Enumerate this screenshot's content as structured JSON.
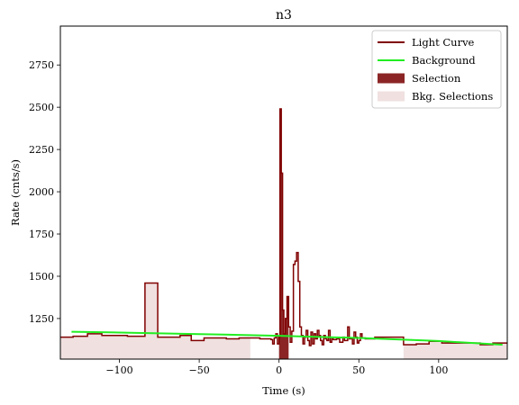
{
  "chart_data": {
    "type": "line",
    "title": "n3",
    "xlabel": "Time (s)",
    "ylabel": "Rate (cnts/s)",
    "xlim": [
      -137,
      143
    ],
    "ylim": [
      1010,
      2980
    ],
    "x_ticks": [
      -100,
      -50,
      0,
      50,
      100
    ],
    "x_tick_labels": [
      "−100",
      "−50",
      "0",
      "50",
      "100"
    ],
    "y_ticks": [
      1250,
      1500,
      1750,
      2000,
      2250,
      2500,
      2750
    ],
    "y_tick_labels": [
      "1250",
      "1500",
      "1750",
      "2000",
      "2250",
      "2500",
      "2750"
    ],
    "grid": false,
    "legend_position": "top-right",
    "legend": [
      {
        "label": "Light Curve",
        "kind": "line",
        "color": "#800000"
      },
      {
        "label": "Background",
        "kind": "line",
        "color": "#22ee22"
      },
      {
        "label": "Selection",
        "kind": "patch",
        "color": "#8b2525"
      },
      {
        "label": "Bkg. Selections",
        "kind": "patch",
        "color": "#f0e0e0"
      }
    ],
    "light_curve": {
      "color": "#800000",
      "steps": [
        [
          -137,
          1140
        ],
        [
          -130,
          1140
        ],
        [
          -129,
          1145
        ],
        [
          -121,
          1145
        ],
        [
          -120,
          1160
        ],
        [
          -112,
          1160
        ],
        [
          -111,
          1150
        ],
        [
          -95,
          1145
        ],
        [
          -85,
          1145
        ],
        [
          -84,
          1460
        ],
        [
          -77,
          1460
        ],
        [
          -76,
          1140
        ],
        [
          -62,
          1150
        ],
        [
          -55,
          1120
        ],
        [
          -47,
          1135
        ],
        [
          -33,
          1130
        ],
        [
          -25,
          1135
        ],
        [
          -12,
          1130
        ],
        [
          -5,
          1125
        ],
        [
          -4,
          1100
        ],
        [
          -3,
          1135
        ],
        [
          -2,
          1160
        ],
        [
          -1,
          1100
        ],
        [
          0,
          1140
        ],
        [
          0.6,
          2490
        ],
        [
          1.4,
          2110
        ],
        [
          2.2,
          1300
        ],
        [
          3,
          1160
        ],
        [
          4,
          1250
        ],
        [
          5,
          1380
        ],
        [
          6,
          1200
        ],
        [
          7,
          1110
        ],
        [
          8,
          1175
        ],
        [
          9,
          1570
        ],
        [
          10,
          1590
        ],
        [
          11,
          1640
        ],
        [
          12,
          1470
        ],
        [
          13,
          1200
        ],
        [
          14,
          1150
        ],
        [
          15,
          1100
        ],
        [
          16,
          1140
        ],
        [
          17,
          1180
        ],
        [
          18,
          1120
        ],
        [
          19,
          1090
        ],
        [
          20,
          1170
        ],
        [
          21,
          1100
        ],
        [
          22,
          1160
        ],
        [
          23,
          1130
        ],
        [
          24,
          1180
        ],
        [
          25,
          1150
        ],
        [
          26,
          1120
        ],
        [
          27,
          1095
        ],
        [
          28,
          1150
        ],
        [
          29,
          1130
        ],
        [
          30,
          1120
        ],
        [
          31,
          1180
        ],
        [
          32,
          1110
        ],
        [
          33,
          1130
        ],
        [
          34,
          1125
        ],
        [
          36,
          1130
        ],
        [
          38,
          1110
        ],
        [
          40,
          1140
        ],
        [
          41,
          1120
        ],
        [
          43,
          1200
        ],
        [
          44,
          1130
        ],
        [
          46,
          1100
        ],
        [
          47,
          1170
        ],
        [
          48,
          1140
        ],
        [
          49,
          1105
        ],
        [
          50,
          1120
        ],
        [
          51,
          1160
        ],
        [
          52,
          1135
        ],
        [
          54,
          1130
        ],
        [
          60,
          1140
        ],
        [
          78,
          1095
        ],
        [
          86,
          1100
        ],
        [
          94,
          1115
        ],
        [
          102,
          1105
        ],
        [
          118,
          1105
        ],
        [
          126,
          1095
        ],
        [
          134,
          1105
        ],
        [
          143,
          1105
        ]
      ]
    },
    "background": {
      "color": "#22ee22",
      "x": [
        -130,
        -100,
        -50,
        0,
        50,
        100,
        140
      ],
      "y": [
        1172,
        1167,
        1158,
        1148,
        1135,
        1117,
        1095
      ]
    },
    "selection": {
      "color": "#8b2525",
      "range": [
        0,
        6
      ]
    },
    "bkg_selections": {
      "color": "#f0e0e0",
      "ranges": [
        [
          -137,
          -18
        ],
        [
          78,
          143
        ]
      ]
    }
  }
}
